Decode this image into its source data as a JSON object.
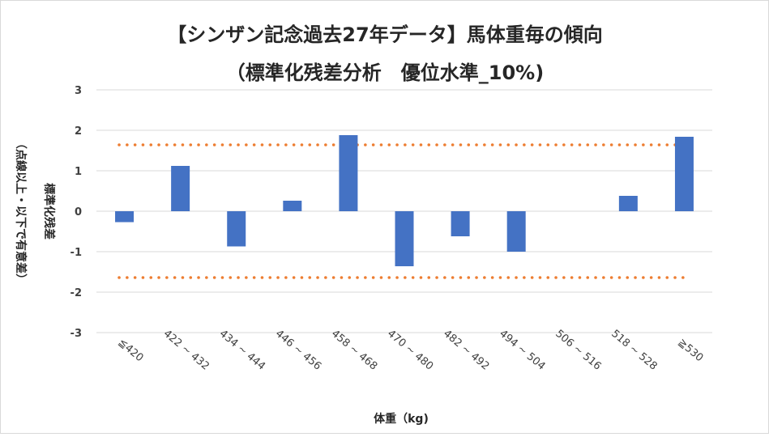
{
  "chart_data": {
    "type": "bar",
    "title": "【シンザン記念過去27年データ】馬体重毎の傾向",
    "subtitle": "（標準化残差分析　優位水準_10%)",
    "xlabel": "体重（kg)",
    "ylabel": "標準化残差",
    "ylabel_note": "（点線以上・以下で有意差）",
    "categories": [
      "≦420",
      "422 ~ 432",
      "434 ~ 444",
      "446 ~ 456",
      "458 ~ 468",
      "470 ~ 480",
      "482 ~ 492",
      "494 ~ 504",
      "506 ~ 516",
      "518 ~ 528",
      "≧530"
    ],
    "values": [
      -0.27,
      1.12,
      -0.87,
      0.26,
      1.88,
      -1.36,
      -0.62,
      -1.0,
      0.0,
      0.38,
      1.84
    ],
    "ylim": [
      -3,
      3
    ],
    "yticks": [
      "3",
      "2",
      "1",
      "0",
      "-1",
      "-2",
      "-3"
    ],
    "threshold_upper": 1.64,
    "threshold_lower": -1.64,
    "grid": true,
    "colors": {
      "bar": "#4472c4",
      "threshold": "#ed7d31",
      "grid": "#d9d9d9"
    }
  }
}
